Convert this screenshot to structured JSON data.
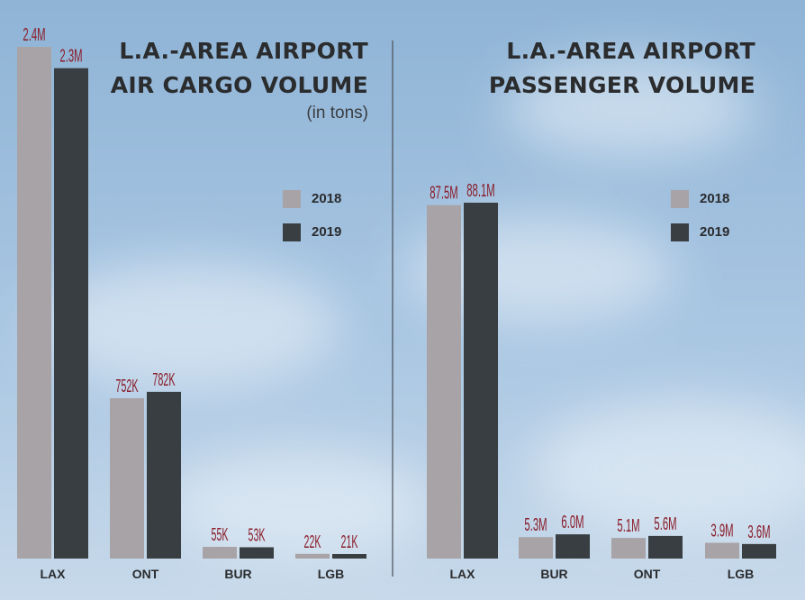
{
  "colors": {
    "series_2018": "#a8a3a6",
    "series_2019": "#383e41",
    "value_label": "#8a1d2a",
    "text": "#2a2c2e",
    "sky_top": "#8fb4d6",
    "sky_bottom": "#c7d9ea",
    "divider": "#4a5058"
  },
  "chart_data": [
    {
      "type": "bar",
      "title": "L.A.-AREA AIRPORT AIR CARGO VOLUME",
      "title_lines": [
        "L.A.-AREA AIRPORT",
        "AIR CARGO VOLUME"
      ],
      "subtitle": "(in tons)",
      "categories": [
        "LAX",
        "ONT",
        "BUR",
        "LGB"
      ],
      "series": [
        {
          "name": "2018",
          "values": [
            2400000,
            752000,
            55000,
            22000
          ],
          "labels": [
            "2.4M",
            "752K",
            "55K",
            "22K"
          ]
        },
        {
          "name": "2019",
          "values": [
            2300000,
            782000,
            53000,
            21000
          ],
          "labels": [
            "2.3M",
            "782K",
            "53K",
            "21K"
          ]
        }
      ],
      "unit": "tons",
      "legend_position": "right",
      "grid": false
    },
    {
      "type": "bar",
      "title": "L.A.-AREA AIRPORT PASSENGER VOLUME",
      "title_lines": [
        "L.A.-AREA AIRPORT",
        "PASSENGER VOLUME"
      ],
      "subtitle": "",
      "categories": [
        "LAX",
        "BUR",
        "ONT",
        "LGB"
      ],
      "series": [
        {
          "name": "2018",
          "values": [
            87500000,
            5300000,
            5100000,
            3900000
          ],
          "labels": [
            "87.5M",
            "5.3M",
            "5.1M",
            "3.9M"
          ]
        },
        {
          "name": "2019",
          "values": [
            88100000,
            6000000,
            5600000,
            3600000
          ],
          "labels": [
            "88.1M",
            "6.0M",
            "5.6M",
            "3.6M"
          ]
        }
      ],
      "unit": "passengers",
      "legend_position": "right",
      "grid": false
    }
  ]
}
